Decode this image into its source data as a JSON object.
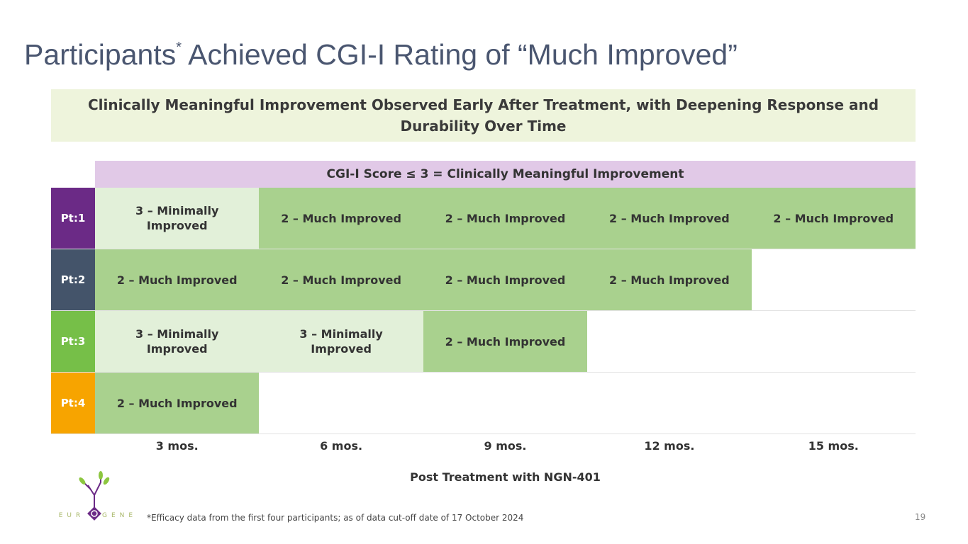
{
  "title": {
    "main": "Participants",
    "sup": "*",
    "rest": " Achieved CGI-I Rating of “Much Improved”"
  },
  "banner": "Clinically Meaningful Improvement Observed Early After Treatment, with Deepening Response and Durability Over Time",
  "header": "CGI-I Score ≤ 3 = Clinically Meaningful Improvement",
  "colors": {
    "pt1": "#6b2a86",
    "pt2": "#44546a",
    "pt3": "#76bf48",
    "pt4": "#f7a400",
    "minimally": "#e2f0d9",
    "much": "#a9d18e"
  },
  "rows": [
    {
      "label": "Pt:1",
      "cells": [
        "3 – Minimally Improved",
        "2 – Much Improved",
        "2 – Much Improved",
        "2 – Much Improved",
        "2 – Much Improved"
      ]
    },
    {
      "label": "Pt:2",
      "cells": [
        "2 – Much Improved",
        "2 – Much Improved",
        "2 – Much Improved",
        "2 – Much Improved",
        ""
      ]
    },
    {
      "label": "Pt:3",
      "cells": [
        "3 – Minimally Improved",
        "3 – Minimally Improved",
        "2 – Much Improved",
        "",
        ""
      ]
    },
    {
      "label": "Pt:4",
      "cells": [
        "2 – Much Improved",
        "",
        "",
        "",
        ""
      ]
    }
  ],
  "timepoints": [
    "3 mos.",
    "6 mos.",
    "9 mos.",
    "12 mos.",
    "15 mos."
  ],
  "xlabel": "Post Treatment with NGN-401",
  "footnote": "*Efficacy data from the first four participants; as of data cut-off date of 17 October 2024",
  "page_number": "19",
  "logo_text": "NEUROGENE"
}
